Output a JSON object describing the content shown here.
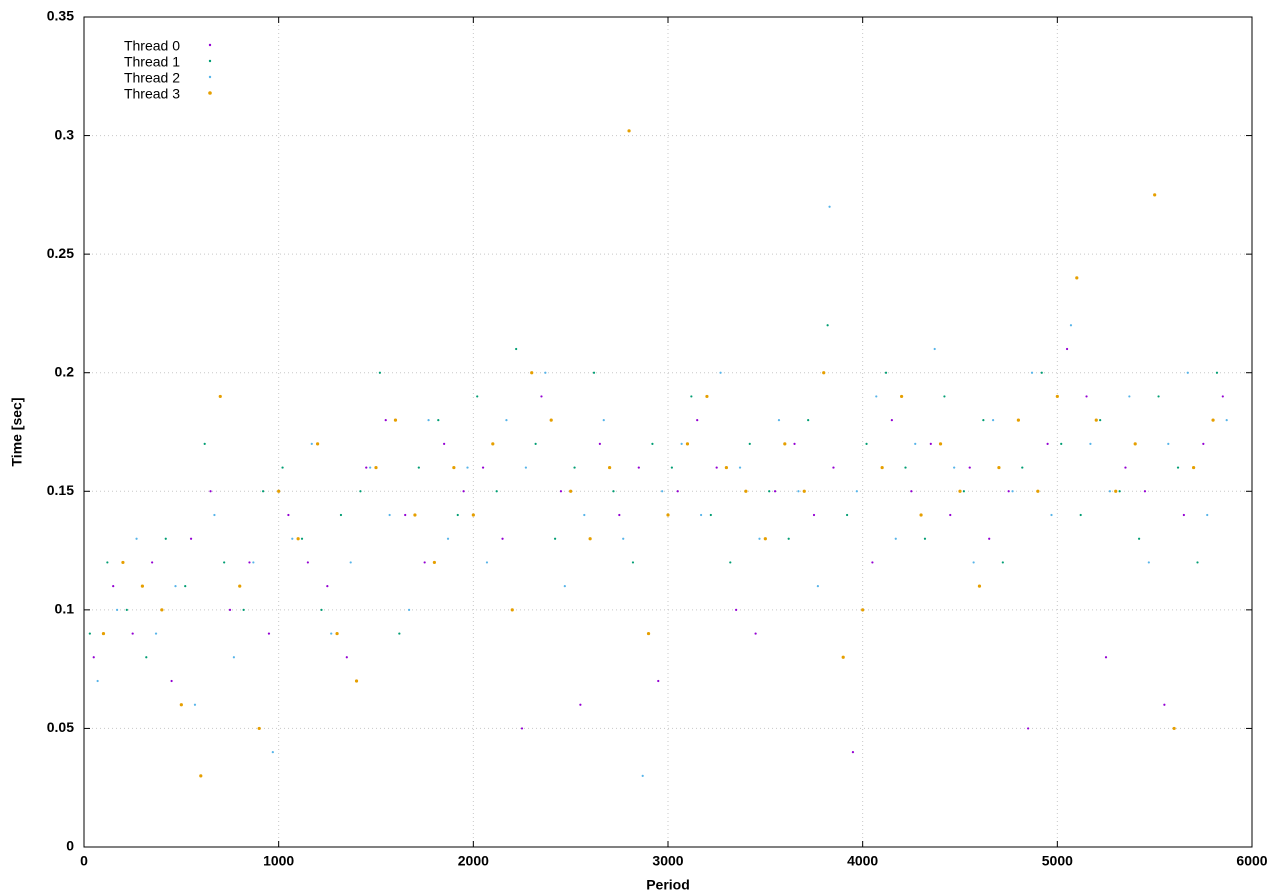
{
  "chart_data": {
    "type": "scatter",
    "x_label": "Period",
    "y_label": "Time [sec]",
    "xlim": [
      0,
      6000
    ],
    "xticks": [
      0,
      1000,
      2000,
      3000,
      4000,
      5000,
      6000
    ],
    "ylim": [
      0,
      0.35
    ],
    "yticks": [
      0,
      0.05,
      0.1,
      0.15,
      0.2,
      0.25,
      0.3,
      0.35
    ],
    "grid": true,
    "legend": "top-left",
    "series": [
      {
        "name": "Thread 0",
        "color": "#9400d3",
        "x": [
          50,
          150,
          250,
          350,
          450,
          550,
          650,
          750,
          850,
          950,
          1050,
          1150,
          1250,
          1350,
          1450,
          1550,
          1650,
          1750,
          1850,
          1950,
          2050,
          2150,
          2250,
          2350,
          2450,
          2550,
          2650,
          2750,
          2850,
          2950,
          3050,
          3150,
          3250,
          3350,
          3450,
          3550,
          3650,
          3750,
          3850,
          3950,
          4050,
          4150,
          4250,
          4350,
          4450,
          4550,
          4650,
          4750,
          4850,
          4950,
          5050,
          5150,
          5250,
          5350,
          5450,
          5550,
          5650,
          5750,
          5850
        ],
        "values": [
          0.08,
          0.11,
          0.09,
          0.12,
          0.07,
          0.13,
          0.15,
          0.1,
          0.12,
          0.09,
          0.14,
          0.12,
          0.11,
          0.08,
          0.16,
          0.18,
          0.14,
          0.12,
          0.17,
          0.15,
          0.16,
          0.13,
          0.05,
          0.19,
          0.15,
          0.06,
          0.17,
          0.14,
          0.16,
          0.07,
          0.15,
          0.18,
          0.16,
          0.1,
          0.09,
          0.15,
          0.17,
          0.14,
          0.16,
          0.04,
          0.12,
          0.18,
          0.15,
          0.17,
          0.14,
          0.16,
          0.13,
          0.15,
          0.05,
          0.17,
          0.21,
          0.19,
          0.08,
          0.16,
          0.15,
          0.06,
          0.14,
          0.17,
          0.19
        ]
      },
      {
        "name": "Thread 1",
        "color": "#009e73",
        "x": [
          30,
          120,
          220,
          320,
          420,
          520,
          620,
          720,
          820,
          920,
          1020,
          1120,
          1220,
          1320,
          1420,
          1520,
          1620,
          1720,
          1820,
          1920,
          2020,
          2120,
          2220,
          2320,
          2420,
          2520,
          2620,
          2720,
          2820,
          2920,
          3020,
          3120,
          3220,
          3320,
          3420,
          3520,
          3620,
          3720,
          3820,
          3920,
          4020,
          4120,
          4220,
          4320,
          4420,
          4520,
          4620,
          4720,
          4820,
          4920,
          5020,
          5120,
          5220,
          5320,
          5420,
          5520,
          5620,
          5720,
          5820
        ],
        "values": [
          0.09,
          0.12,
          0.1,
          0.08,
          0.13,
          0.11,
          0.17,
          0.12,
          0.1,
          0.15,
          0.16,
          0.13,
          0.1,
          0.14,
          0.15,
          0.2,
          0.09,
          0.16,
          0.18,
          0.14,
          0.19,
          0.15,
          0.21,
          0.17,
          0.13,
          0.16,
          0.2,
          0.15,
          0.12,
          0.17,
          0.16,
          0.19,
          0.14,
          0.12,
          0.17,
          0.15,
          0.13,
          0.18,
          0.22,
          0.14,
          0.17,
          0.2,
          0.16,
          0.13,
          0.19,
          0.15,
          0.18,
          0.12,
          0.16,
          0.2,
          0.17,
          0.14,
          0.18,
          0.15,
          0.13,
          0.19,
          0.16,
          0.12,
          0.2
        ]
      },
      {
        "name": "Thread 2",
        "color": "#56b4e9",
        "x": [
          70,
          170,
          270,
          370,
          470,
          570,
          670,
          770,
          870,
          970,
          1070,
          1170,
          1270,
          1370,
          1470,
          1570,
          1670,
          1770,
          1870,
          1970,
          2070,
          2170,
          2270,
          2370,
          2470,
          2570,
          2670,
          2770,
          2870,
          2970,
          3070,
          3170,
          3270,
          3370,
          3470,
          3570,
          3670,
          3770,
          3830,
          3970,
          4070,
          4170,
          4270,
          4370,
          4470,
          4570,
          4670,
          4770,
          4870,
          4970,
          5070,
          5170,
          5270,
          5370,
          5470,
          5570,
          5670,
          5770,
          5870
        ],
        "values": [
          0.07,
          0.1,
          0.13,
          0.09,
          0.11,
          0.06,
          0.14,
          0.08,
          0.12,
          0.04,
          0.13,
          0.17,
          0.09,
          0.12,
          0.16,
          0.14,
          0.1,
          0.18,
          0.13,
          0.16,
          0.12,
          0.18,
          0.16,
          0.2,
          0.11,
          0.14,
          0.18,
          0.13,
          0.03,
          0.15,
          0.17,
          0.14,
          0.2,
          0.16,
          0.13,
          0.18,
          0.15,
          0.11,
          0.27,
          0.15,
          0.19,
          0.13,
          0.17,
          0.21,
          0.16,
          0.12,
          0.18,
          0.15,
          0.2,
          0.14,
          0.22,
          0.17,
          0.15,
          0.19,
          0.12,
          0.17,
          0.2,
          0.14,
          0.18
        ]
      },
      {
        "name": "Thread 3",
        "color": "#e69f00",
        "x": [
          100,
          200,
          300,
          400,
          500,
          600,
          700,
          800,
          900,
          1000,
          1100,
          1200,
          1300,
          1400,
          1500,
          1600,
          1700,
          1800,
          1900,
          2000,
          2100,
          2200,
          2300,
          2400,
          2500,
          2600,
          2700,
          2800,
          2900,
          3000,
          3100,
          3200,
          3300,
          3400,
          3500,
          3600,
          3700,
          3800,
          3900,
          4000,
          4100,
          4200,
          4300,
          4400,
          4500,
          4600,
          4700,
          4800,
          4900,
          5000,
          5100,
          5200,
          5300,
          5400,
          5500,
          5600,
          5700,
          5800
        ],
        "values": [
          0.09,
          0.12,
          0.11,
          0.1,
          0.06,
          0.03,
          0.19,
          0.11,
          0.05,
          0.15,
          0.13,
          0.17,
          0.09,
          0.07,
          0.16,
          0.18,
          0.14,
          0.12,
          0.16,
          0.14,
          0.17,
          0.1,
          0.2,
          0.18,
          0.15,
          0.13,
          0.16,
          0.302,
          0.09,
          0.14,
          0.17,
          0.19,
          0.16,
          0.15,
          0.13,
          0.17,
          0.15,
          0.2,
          0.08,
          0.1,
          0.16,
          0.19,
          0.14,
          0.17,
          0.15,
          0.11,
          0.16,
          0.18,
          0.15,
          0.19,
          0.24,
          0.18,
          0.15,
          0.17,
          0.275,
          0.05,
          0.16,
          0.18
        ]
      }
    ]
  }
}
